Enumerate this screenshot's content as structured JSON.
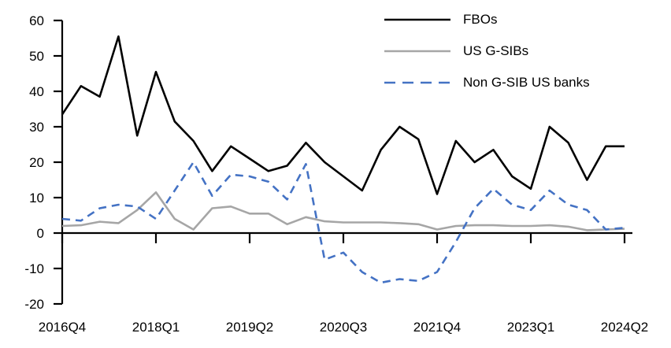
{
  "chart_data": {
    "type": "line",
    "title": "",
    "xlabel": "",
    "ylabel": "",
    "grid": false,
    "legend_position": "top-right",
    "ylim": [
      -20,
      60
    ],
    "ytick_step": 10,
    "xtick_every": 5,
    "xtick_labels_shown": [
      "2016Q4",
      "2018Q1",
      "2019Q2",
      "2020Q3",
      "2021Q4",
      "2023Q1",
      "2024Q2"
    ],
    "categories": [
      "2016Q4",
      "2017Q1",
      "2017Q2",
      "2017Q3",
      "2017Q4",
      "2018Q1",
      "2018Q2",
      "2018Q3",
      "2018Q4",
      "2019Q1",
      "2019Q2",
      "2019Q3",
      "2019Q4",
      "2020Q1",
      "2020Q2",
      "2020Q3",
      "2020Q4",
      "2021Q1",
      "2021Q2",
      "2021Q3",
      "2021Q4",
      "2022Q1",
      "2022Q2",
      "2022Q3",
      "2022Q4",
      "2023Q1",
      "2023Q2",
      "2023Q3",
      "2023Q4",
      "2024Q1",
      "2024Q2"
    ],
    "axis_color": "#000000",
    "series": [
      {
        "id": "fbos",
        "name": "FBOs",
        "color": "#000000",
        "dash": null,
        "legend_dash": null,
        "values": [
          33.5,
          41.5,
          38.5,
          55.5,
          27.5,
          45.5,
          31.5,
          26,
          17.5,
          24.5,
          21,
          17.5,
          19,
          25.5,
          20,
          16,
          12,
          23.5,
          30,
          26.5,
          11,
          26,
          20,
          23.5,
          16,
          12.5,
          30,
          25.5,
          15,
          24.5,
          24.5
        ]
      },
      {
        "id": "us-gsibs",
        "name": "US G-SIBs",
        "color": "#A6A6A6",
        "dash": null,
        "legend_dash": null,
        "values": [
          2,
          2.2,
          3.2,
          2.8,
          6.5,
          11.5,
          4,
          1,
          7,
          7.5,
          5.5,
          5.5,
          2.5,
          4.5,
          3.3,
          3,
          3,
          3,
          2.8,
          2.5,
          1,
          2,
          2.2,
          2.2,
          2,
          2,
          2.2,
          1.8,
          0.8,
          1,
          1.2
        ]
      },
      {
        "id": "non-gsib-us-banks",
        "name": "Non G-SIB US banks",
        "color": "#4472C4",
        "dash": "10 7",
        "legend_dash": "14 9",
        "values": [
          4,
          3.5,
          7,
          8,
          7.5,
          4,
          12,
          20,
          10.5,
          16.5,
          16,
          14.5,
          9.5,
          19.5,
          -7.5,
          -5.5,
          -11,
          -14,
          -13,
          -13.5,
          -11,
          -2.5,
          7,
          12.5,
          8,
          6.5,
          12,
          8,
          6.5,
          1,
          1.5
        ]
      }
    ]
  }
}
